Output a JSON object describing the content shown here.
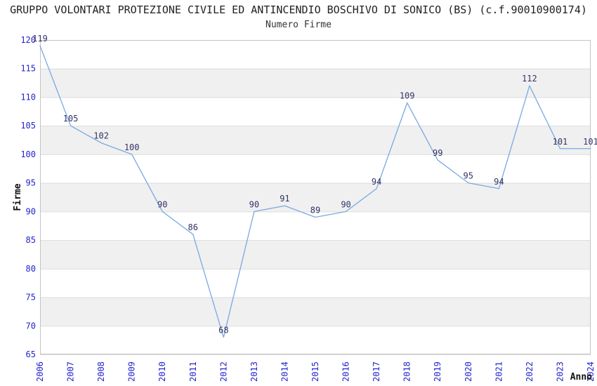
{
  "header": {
    "title": "GRUPPO VOLONTARI PROTEZIONE CIVILE ED ANTINCENDIO BOSCHIVO DI SONICO (BS) (c.f.90010900174)",
    "subtitle": "Numero Firme"
  },
  "chart_data": {
    "type": "line",
    "title": "GRUPPO VOLONTARI PROTEZIONE CIVILE ED ANTINCENDIO BOSCHIVO DI SONICO (BS) (c.f.90010900174)",
    "subtitle": "Numero Firme",
    "xlabel": "Anno",
    "ylabel": "Firme",
    "categories": [
      "2006",
      "2007",
      "2008",
      "2009",
      "2010",
      "2011",
      "2012",
      "2013",
      "2014",
      "2015",
      "2016",
      "2017",
      "2018",
      "2019",
      "2020",
      "2021",
      "2022",
      "2023",
      "2024"
    ],
    "values": [
      119,
      105,
      102,
      100,
      90,
      86,
      68,
      90,
      91,
      89,
      90,
      94,
      109,
      99,
      95,
      94,
      112,
      101,
      101
    ],
    "ylim": [
      65,
      120
    ],
    "yticks": [
      120,
      115,
      110,
      105,
      100,
      95,
      90,
      85,
      80,
      75,
      70,
      65
    ],
    "grid": true,
    "legend": "none",
    "data_labels_visible": true,
    "colors": {
      "line": "#79a9e2",
      "data_label": "#333366",
      "tick_label": "#2424cc",
      "axis_title": "#111111",
      "band": "#f0f0f0",
      "band_alt": "#ffffff",
      "gridline": "#dcdcdc",
      "plot_border": "#c4c4c4",
      "background": "#ffffff"
    }
  }
}
